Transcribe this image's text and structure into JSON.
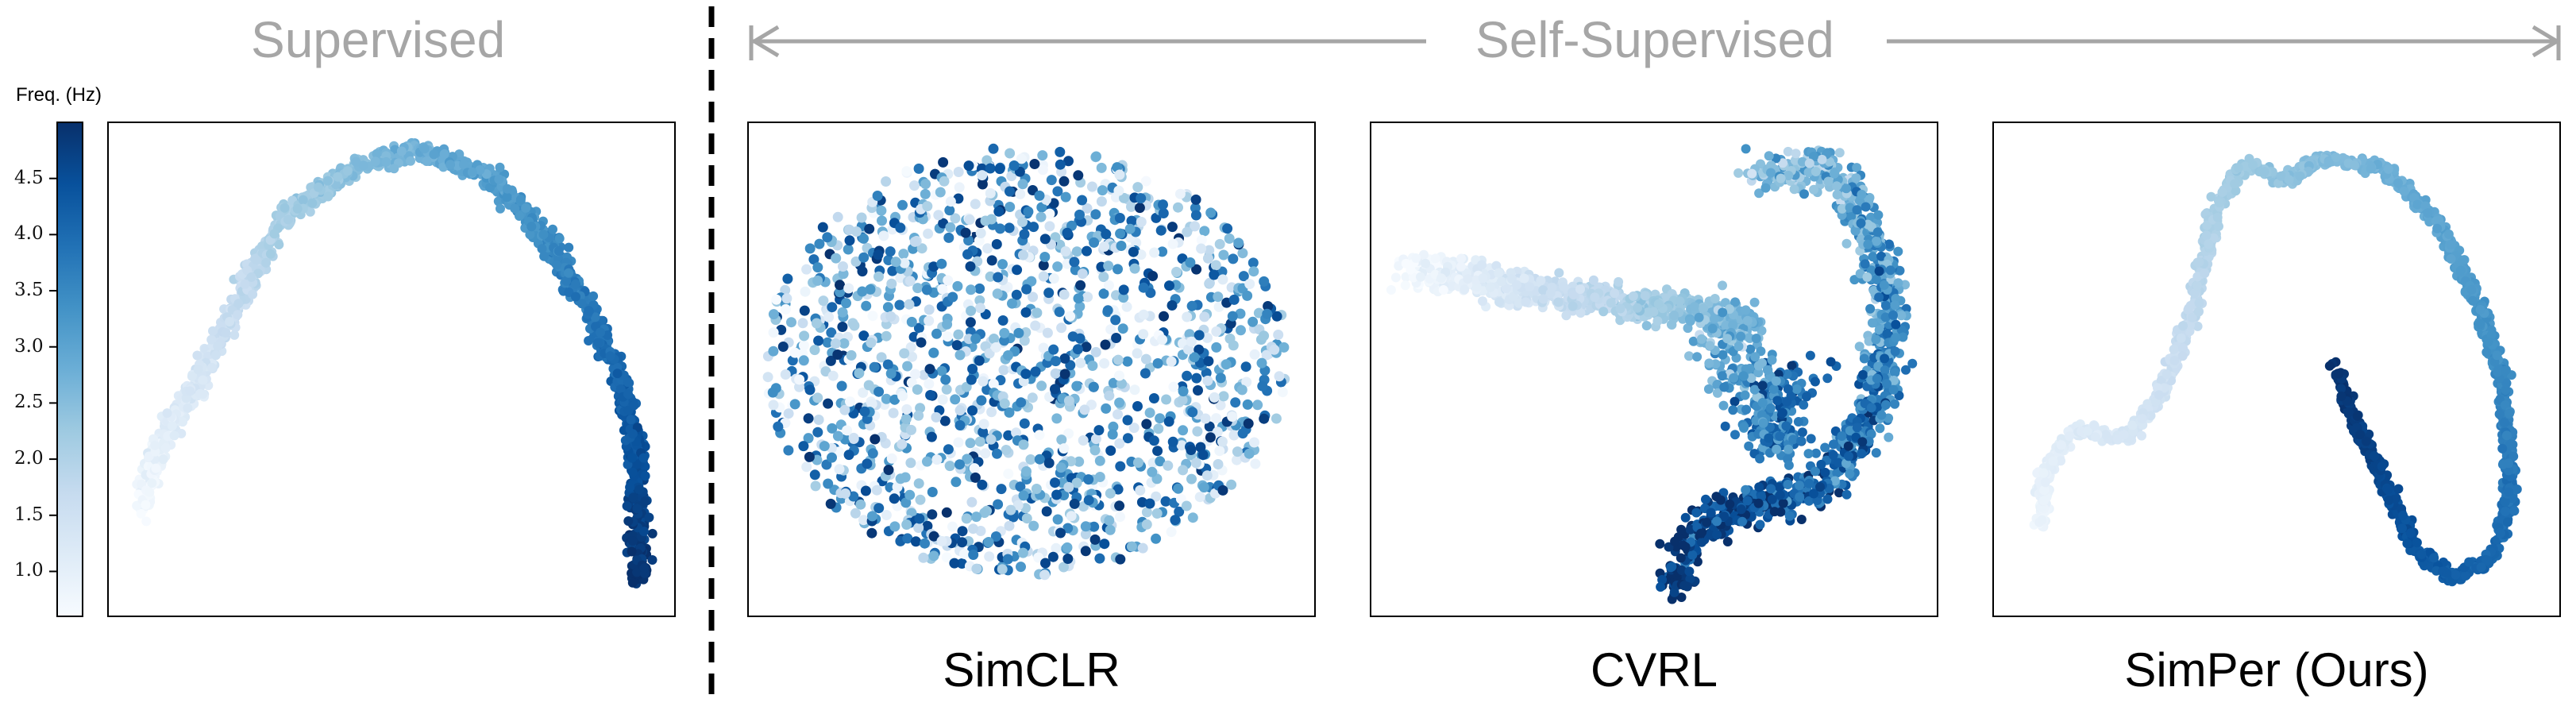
{
  "header": {
    "supervised_label": "Supervised",
    "selfsup_label": "Self-Supervised"
  },
  "colorbar": {
    "title": "Freq. (Hz)",
    "ticks": [
      "4.5",
      "4.0",
      "3.5",
      "3.0",
      "2.5",
      "2.0",
      "1.5",
      "1.0"
    ],
    "tick_values": [
      4.5,
      4.0,
      3.5,
      3.0,
      2.5,
      2.0,
      1.5,
      1.0
    ],
    "range": [
      0.6,
      5.0
    ],
    "colormap": "Blues",
    "color_low": "#f7fbff",
    "color_high": "#08306b"
  },
  "colors": {
    "section_label": "#a6a6a6",
    "frame": "#000000",
    "divider": "#000000"
  },
  "chart_data": [
    {
      "type": "scatter",
      "panel": "supervised",
      "title": "",
      "shape": "arch",
      "color_by": "Freq. (Hz)",
      "grid": false,
      "axes_ticks": false
    },
    {
      "type": "scatter",
      "panel": "simclr",
      "title": "SimCLR",
      "shape": "random cloud",
      "color_by": "Freq. (Hz)",
      "grid": false,
      "axes_ticks": false
    },
    {
      "type": "scatter",
      "panel": "cvrl",
      "title": "CVRL",
      "shape": "horizontal band with curved right arm",
      "color_by": "Freq. (Hz)",
      "grid": false,
      "axes_ticks": false
    },
    {
      "type": "scatter",
      "panel": "simper",
      "title": "SimPer (Ours)",
      "shape": "continuous S-shaped manifold",
      "color_by": "Freq. (Hz)",
      "grid": false,
      "axes_ticks": false
    }
  ]
}
